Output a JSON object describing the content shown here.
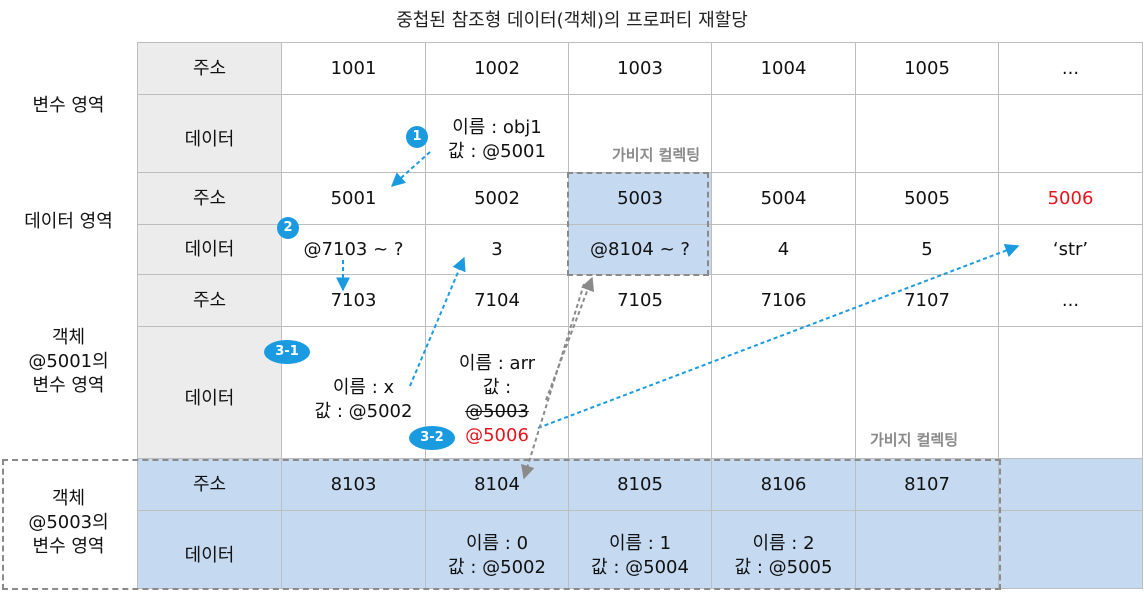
{
  "title": "중첩된 참조형 데이터(객체)의 프로퍼티 재할당",
  "regions": {
    "variables": "변수 영역",
    "data": "데이터 영역",
    "obj5001": [
      "객체",
      "@5001의",
      "변수 영역"
    ],
    "obj5003": [
      "객체",
      "@5003의",
      "변수 영역"
    ]
  },
  "headers": {
    "address": "주소",
    "data": "데이터"
  },
  "rows": {
    "var_addr": [
      "1001",
      "1002",
      "1003",
      "1004",
      "1005",
      "..."
    ],
    "var_data": [
      "",
      "이름 : obj1",
      "값 : @5001"
    ],
    "data_addr": [
      "5001",
      "5002",
      "5003",
      "5004",
      "5005",
      "5006"
    ],
    "data_vals": [
      "@7103 ~ ?",
      "3",
      "@8104 ~ ?",
      "4",
      "5",
      "‘str’"
    ],
    "obj1_addr": [
      "7103",
      "7104",
      "7105",
      "7106",
      "7107",
      "..."
    ],
    "obj1_cell1": [
      "이름 : x",
      "값 : @5002"
    ],
    "obj1_cell2": [
      "이름 : arr",
      "값 :",
      "@5003",
      "@5006"
    ],
    "obj2_addr": [
      "8103",
      "8104",
      "8105",
      "8106",
      "8107",
      ""
    ],
    "obj2_data": [
      [
        "이름 : 0",
        "값 : @5002"
      ],
      [
        "이름 : 1",
        "값 : @5004"
      ],
      [
        "이름 : 2",
        "값 : @5005"
      ]
    ]
  },
  "badges": [
    "1",
    "2",
    "3-1",
    "3-2"
  ],
  "garbage_label": "가비지 컬렉팅",
  "colors": {
    "accent": "#1a9be0",
    "highlight": "#c5d9f1",
    "red": "#e8141b",
    "header": "#ececec"
  }
}
